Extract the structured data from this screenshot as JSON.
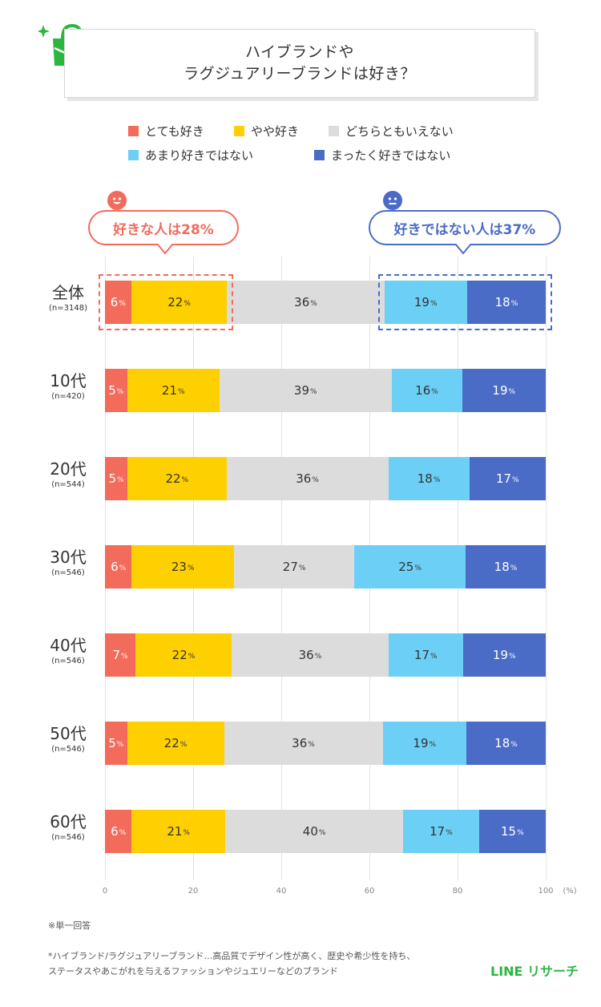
{
  "chart_data": {
    "type": "bar",
    "orientation": "horizontal-stacked-100",
    "title": [
      "ハイブランドや",
      "ラグジュアリーブランドは好き？"
    ],
    "series": [
      {
        "name": "とても好き",
        "color": "#f26b5b"
      },
      {
        "name": "やや好き",
        "color": "#ffd000"
      },
      {
        "name": "どちらともいえない",
        "color": "#dcdcdc"
      },
      {
        "name": "あまり好きではない",
        "color": "#6ccff6"
      },
      {
        "name": "まったく好きではない",
        "color": "#4a6cc7"
      }
    ],
    "rows": [
      {
        "label": "全体",
        "n": "(n=3148)",
        "values": [
          6,
          22,
          36,
          19,
          18
        ]
      },
      {
        "label": "10代",
        "n": "(n=420)",
        "values": [
          5,
          21,
          39,
          16,
          19
        ]
      },
      {
        "label": "20代",
        "n": "(n=544)",
        "values": [
          5,
          22,
          36,
          18,
          17
        ]
      },
      {
        "label": "30代",
        "n": "(n=546)",
        "values": [
          6,
          23,
          27,
          25,
          18
        ]
      },
      {
        "label": "40代",
        "n": "(n=546)",
        "values": [
          7,
          22,
          36,
          17,
          19
        ]
      },
      {
        "label": "50代",
        "n": "(n=546)",
        "values": [
          5,
          22,
          36,
          19,
          18
        ]
      },
      {
        "label": "60代",
        "n": "(n=546)",
        "values": [
          6,
          21,
          40,
          17,
          15
        ]
      }
    ],
    "xticks": [
      "0",
      "20",
      "40",
      "60",
      "80",
      "100"
    ],
    "xlim": [
      0,
      100
    ],
    "xunit": "(%)",
    "value_suffix": "%",
    "grid": true
  },
  "callouts": {
    "like": {
      "text": "好きな人は28%",
      "color": "#f26b5b"
    },
    "dislike": {
      "text": "好きではない人は37%",
      "color": "#4a6cc7"
    }
  },
  "notes": {
    "single_answer": "※単一回答",
    "definition_line1": "*ハイブランド/ラグジュアリーブランド…高品質でデザイン性が高く、歴史や希少性を持ち、",
    "definition_line2": "ステータスやあこがれを与えるファッションやジュエリーなどのブランド"
  },
  "brand": {
    "text": "LINE リサーチ",
    "color": "#2bb640"
  },
  "icon_color": "#2bb640"
}
